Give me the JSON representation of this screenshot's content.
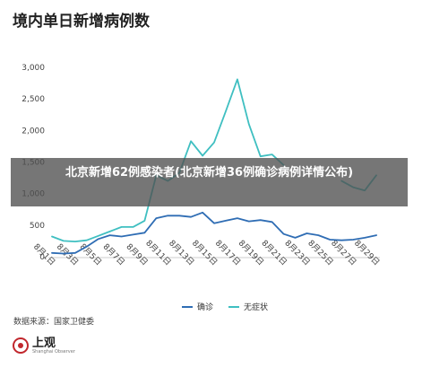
{
  "title": "境内单日新增病例数",
  "source": "数据来源：国家卫健委",
  "logo": {
    "name": "上观",
    "sub": "Shanghai Observer"
  },
  "banner": "北京新增62例感染者(北京新增36例确诊病例详情公布)",
  "colors": {
    "confirmed": "#2f6db4",
    "asymptomatic": "#3fbfc1",
    "axis": "#cccccc"
  },
  "chart_data": {
    "type": "line",
    "title": "境内单日新增病例数",
    "xlabel": "",
    "ylabel": "",
    "ylim": [
      0,
      3000
    ],
    "yticks": [
      "0",
      "500",
      "1,000",
      "1,500",
      "2,000",
      "2,500",
      "3,000"
    ],
    "x": [
      "8月1日",
      "8月2日",
      "8月3日",
      "8月4日",
      "8月5日",
      "8月6日",
      "8月7日",
      "8月8日",
      "8月9日",
      "8月10日",
      "8月11日",
      "8月12日",
      "8月13日",
      "8月14日",
      "8月15日",
      "8月16日",
      "8月17日",
      "8月18日",
      "8月19日",
      "8月20日",
      "8月21日",
      "8月22日",
      "8月23日",
      "8月24日",
      "8月25日",
      "8月26日",
      "8月27日",
      "8月28日",
      "8月29日"
    ],
    "xtick_labels": [
      "8月1日",
      "8月3日",
      "8月5日",
      "8月7日",
      "8月9日",
      "8月11日",
      "8月13日",
      "8月15日",
      "8月17日",
      "8月19日",
      "8月21日",
      "8月23日",
      "8月25日",
      "8月27日",
      "8月29日"
    ],
    "grid": false,
    "legend": "bottom",
    "series": [
      {
        "name": "确诊",
        "color": "#2f6db4",
        "values": [
          60,
          50,
          60,
          160,
          280,
          340,
          320,
          350,
          380,
          610,
          650,
          650,
          630,
          700,
          530,
          570,
          610,
          560,
          580,
          550,
          360,
          300,
          370,
          340,
          270,
          260,
          270,
          300,
          340
        ]
      },
      {
        "name": "无症状",
        "color": "#3fbfc1",
        "values": [
          320,
          250,
          240,
          260,
          330,
          400,
          470,
          470,
          570,
          1290,
          1200,
          1330,
          1830,
          1600,
          1810,
          2300,
          2810,
          2100,
          1590,
          1620,
          1450,
          null,
          null,
          null,
          null,
          1200,
          1100,
          1050,
          1290
        ]
      }
    ]
  }
}
